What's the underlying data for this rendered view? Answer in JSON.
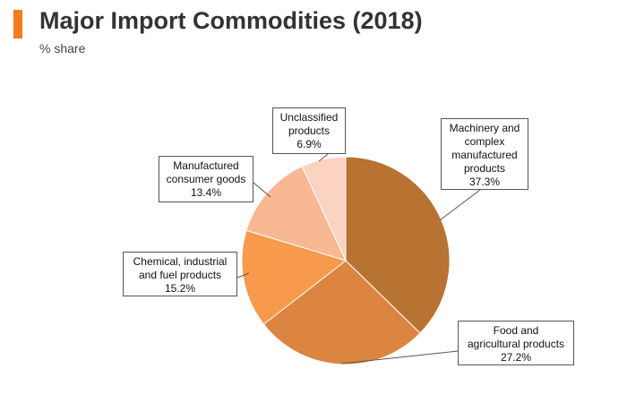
{
  "header": {
    "title": "Major Import Commodities (2018)",
    "subtitle": "% share",
    "accent_color": "#f47b20"
  },
  "chart_data": {
    "type": "pie",
    "title": "Major Import Commodities (2018)",
    "subtitle": "% share",
    "start_angle_deg": 0,
    "direction": "clockwise",
    "slices": [
      {
        "label": "Machinery and complex manufactured products",
        "label_lines": [
          "Machinery and",
          "complex",
          "manufactured",
          "products"
        ],
        "value": 37.3,
        "value_label": "37.3%",
        "color": "#b87333"
      },
      {
        "label": "Food and agricultural products",
        "label_lines": [
          "Food and",
          "agricultural products"
        ],
        "value": 27.2,
        "value_label": "27.2%",
        "color": "#dc8540"
      },
      {
        "label": "Chemical, industrial and fuel products",
        "label_lines": [
          "Chemical, industrial",
          "and fuel products"
        ],
        "value": 15.2,
        "value_label": "15.2%",
        "color": "#f79a4b"
      },
      {
        "label": "Manufactured consumer goods",
        "label_lines": [
          "Manufactured",
          "consumer goods"
        ],
        "value": 13.4,
        "value_label": "13.4%",
        "color": "#f9b894"
      },
      {
        "label": "Unclassified products",
        "label_lines": [
          "Unclassified",
          "products"
        ],
        "value": 6.9,
        "value_label": "6.9%",
        "color": "#fcd3c0"
      }
    ]
  }
}
